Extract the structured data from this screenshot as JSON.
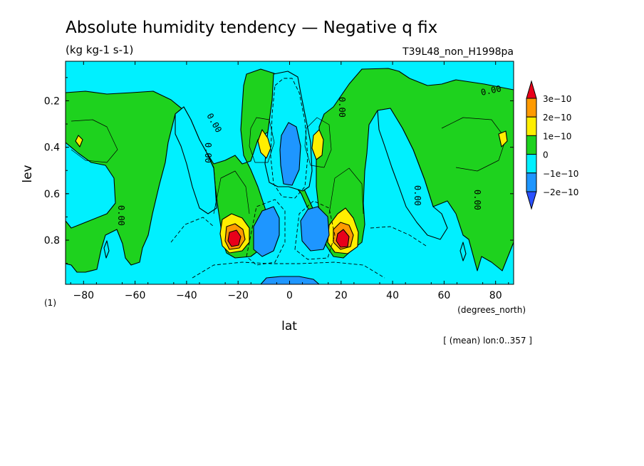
{
  "chart_data": {
    "type": "heatmap",
    "subtype": "filled-contour",
    "title": "Absolute humidity tendency — Negative q fix",
    "units": "(kg kg-1 s-1)",
    "run_label": "T39L48_non_H1998pa",
    "xlabel": "lat",
    "ylabel": "lev",
    "x_units": "(degrees_north)",
    "y_note": "(1)",
    "footer": "[ (mean) lon:0..357 ]",
    "xlim": [
      -87,
      87
    ],
    "ylim": [
      0.99,
      0.03
    ],
    "x_ticks": [
      -80,
      -60,
      -40,
      -20,
      0,
      20,
      40,
      60,
      80
    ],
    "x_tick_labels": [
      "−80",
      "−60",
      "−40",
      "−20",
      "0",
      "20",
      "40",
      "60",
      "80"
    ],
    "y_ticks": [
      0.2,
      0.4,
      0.6,
      0.8
    ],
    "y_tick_labels": [
      "0.2",
      "0.4",
      "0.6",
      "0.8"
    ],
    "colorbar": {
      "labels": [
        "3e−10",
        "2e−10",
        "1e−10",
        "0",
        "−1e−10",
        "−2e−10"
      ],
      "levels": [
        3e-10,
        2e-10,
        1e-10,
        0,
        -1e-10,
        -2e-10
      ],
      "colors": [
        "#e8001a",
        "#ff9a00",
        "#ffee00",
        "#1ed21e",
        "#00f0ff",
        "#1e96ff",
        "#2a50ff"
      ]
    },
    "contour_labels": [
      "0.00",
      "0.00",
      "0.00",
      "0.00",
      "0.00",
      "0.00",
      "0.00",
      "0.00",
      "0.00"
    ],
    "features": [
      {
        "name": "southern-mid-lat-positive",
        "lat": -22,
        "lev": 0.8,
        "value_max": 3e-10
      },
      {
        "name": "northern-mid-lat-positive",
        "lat": 22,
        "lev": 0.8,
        "value_max": 3e-10
      },
      {
        "name": "southern-upper-positive",
        "lat": -10,
        "lev": 0.38,
        "value_max": 1.5e-10
      },
      {
        "name": "northern-upper-positive",
        "lat": 11,
        "lev": 0.38,
        "value_max": 1.5e-10
      },
      {
        "name": "equatorial-upper-negative",
        "lat": 0,
        "lev": 0.42,
        "value_min": -2e-10
      },
      {
        "name": "southern-low-negative",
        "lat": -12,
        "lev": 0.8,
        "value_min": -2e-10
      },
      {
        "name": "northern-low-negative",
        "lat": 12,
        "lev": 0.8,
        "value_min": -2e-10
      }
    ]
  }
}
